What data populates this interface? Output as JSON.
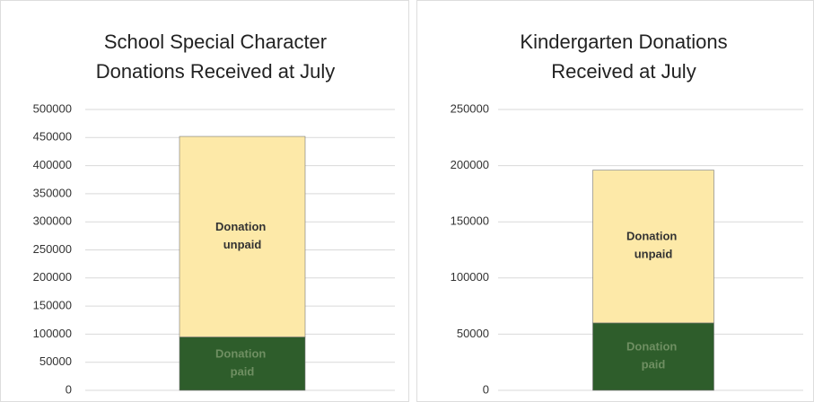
{
  "chart_data": [
    {
      "type": "bar",
      "stacked": true,
      "title": [
        "School Special Character",
        "Donations Received at July"
      ],
      "ylim": [
        0,
        500000
      ],
      "yticks": [
        0,
        50000,
        100000,
        150000,
        200000,
        250000,
        300000,
        350000,
        400000,
        450000,
        500000
      ],
      "grid": true,
      "series": [
        {
          "name": "Donation paid",
          "color": "#2e5d2b",
          "label_color": "#6f8f62",
          "values": [
            95000
          ]
        },
        {
          "name": "Donation unpaid",
          "color": "#fde9a8",
          "label_color": "#333333",
          "values": [
            357000
          ]
        }
      ]
    },
    {
      "type": "bar",
      "stacked": true,
      "title": [
        "Kindergarten Donations",
        "Received at July"
      ],
      "ylim": [
        0,
        250000
      ],
      "yticks": [
        0,
        50000,
        100000,
        150000,
        200000,
        250000
      ],
      "grid": true,
      "series": [
        {
          "name": "Donation paid",
          "color": "#2e5d2b",
          "label_color": "#6f8f62",
          "values": [
            60000
          ]
        },
        {
          "name": "Donation unpaid",
          "color": "#fde9a8",
          "label_color": "#333333",
          "values": [
            136000
          ]
        }
      ]
    }
  ]
}
